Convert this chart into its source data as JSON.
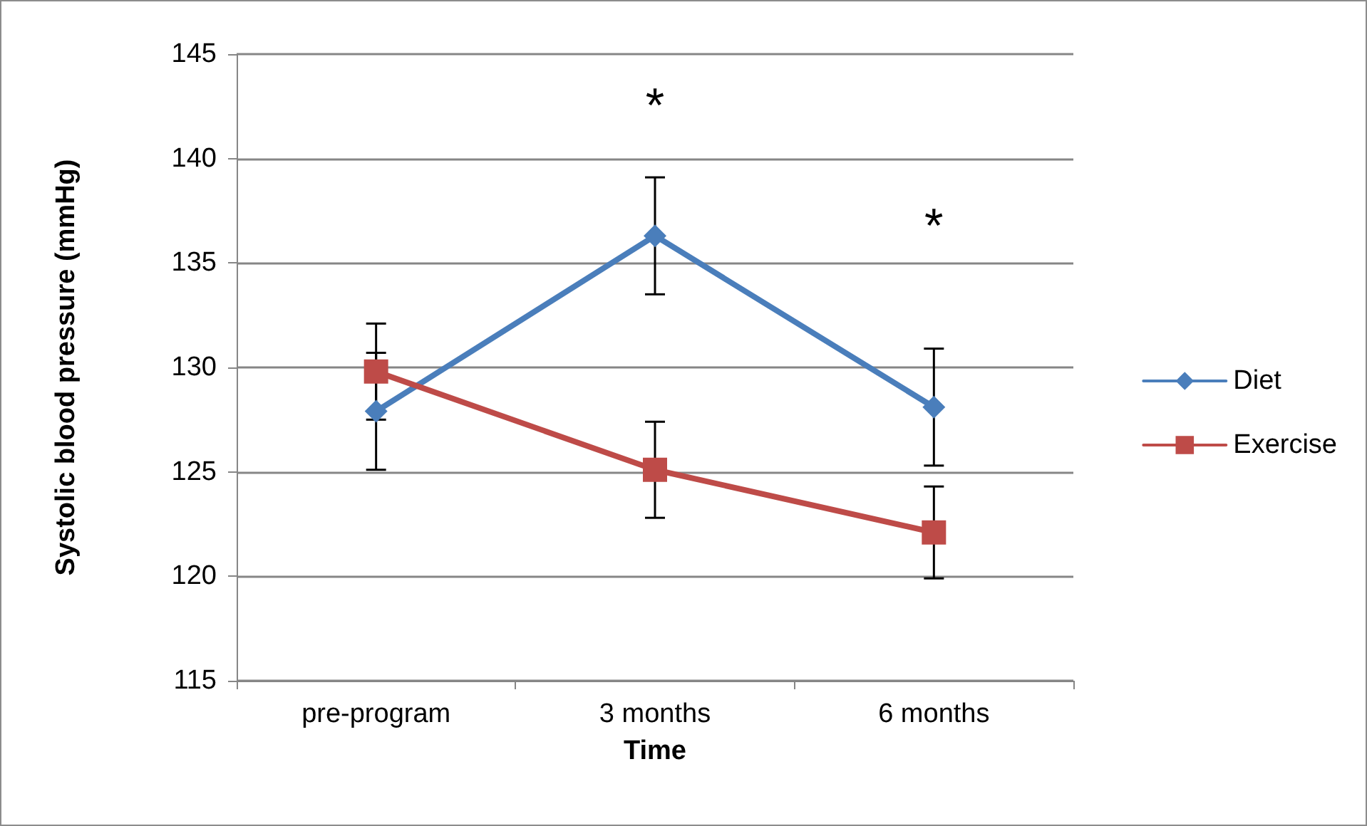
{
  "chart_data": {
    "type": "line",
    "xlabel": "Time",
    "ylabel": "Systolic blood pressure (mmHg)",
    "categories": [
      "pre-program",
      "3 months",
      "6 months"
    ],
    "series": [
      {
        "name": "Diet",
        "color": "#4a7ebb",
        "marker": "diamond",
        "values": [
          127.9,
          136.3,
          128.1
        ],
        "errors": [
          2.8,
          2.8,
          2.8
        ]
      },
      {
        "name": "Exercise",
        "color": "#be4b48",
        "marker": "square",
        "values": [
          129.8,
          125.1,
          122.1
        ],
        "errors": [
          2.3,
          2.3,
          2.2
        ]
      }
    ],
    "ylim": [
      115,
      145
    ],
    "yticks": [
      115,
      120,
      125,
      130,
      135,
      140,
      145
    ],
    "grid": "y",
    "legend": "right",
    "annotations": [
      "*",
      "*"
    ]
  }
}
